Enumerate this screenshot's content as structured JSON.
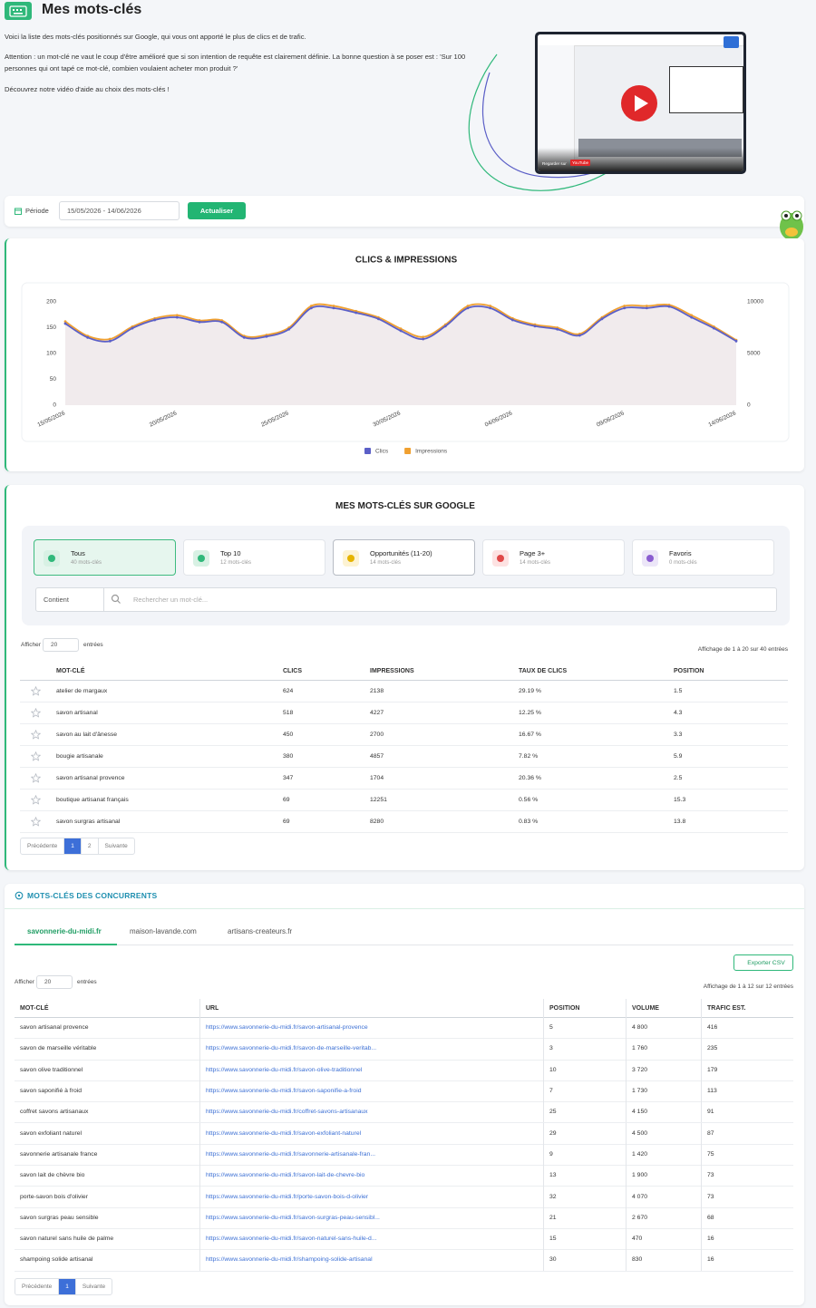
{
  "header": {
    "title": "Mes mots-clés"
  },
  "intro": {
    "p1": "Voici la liste des mots-clés positionnés sur Google, qui vous ont apporté le plus de clics et de trafic.",
    "p2": "Attention : un mot-clé ne vaut le coup d'être amélioré que si son intention de requête est clairement définie. La bonne question à se poser est : 'Sur 100 personnes qui ont tapé ce mot-clé, combien voulaient acheter mon produit ?'",
    "p3": "Découvrez notre vidéo d'aide au choix des mots-clés !"
  },
  "video": {
    "watch": "Regarder sur",
    "platform": "YouTube"
  },
  "period": {
    "label": "Période",
    "range": "15/05/2026 - 14/06/2026",
    "button": "Actualiser"
  },
  "chart_data": {
    "type": "line",
    "title": "CLICS & IMPRESSIONS",
    "categories": [
      "15/05/2026",
      null,
      null,
      null,
      null,
      "20/05/2026",
      null,
      null,
      null,
      null,
      "25/05/2026",
      null,
      null,
      null,
      null,
      "30/05/2026",
      null,
      null,
      null,
      null,
      "04/06/2026",
      null,
      null,
      null,
      null,
      "09/06/2026",
      null,
      null,
      null,
      null,
      "14/06/2026"
    ],
    "series": [
      {
        "name": "Clics",
        "color": "#5b5fc7",
        "values": [
          158,
          131,
          124,
          149,
          165,
          170,
          161,
          161,
          131,
          133,
          147,
          188,
          188,
          179,
          167,
          144,
          128,
          153,
          188,
          188,
          165,
          153,
          147,
          135,
          167,
          188,
          188,
          191,
          170,
          149,
          124
        ]
      },
      {
        "name": "Impressions",
        "color": "#f0a030",
        "axis": "y2",
        "values": [
          8100,
          6700,
          6400,
          7600,
          8400,
          8700,
          8200,
          8200,
          6700,
          6800,
          7500,
          9600,
          9600,
          9100,
          8500,
          7400,
          6600,
          7800,
          9600,
          9600,
          8400,
          7800,
          7500,
          6900,
          8500,
          9600,
          9600,
          9700,
          8700,
          7600,
          6300
        ]
      }
    ],
    "ylim": [
      0,
      200
    ],
    "yticks": [
      0,
      50,
      100,
      150,
      200
    ],
    "y2lim": [
      0,
      10000
    ],
    "y2ticks": [
      0,
      5000,
      10000
    ],
    "grid": false,
    "legend": "bottom"
  },
  "keywords": {
    "title": "MES MOTS-CLÉS SUR GOOGLE",
    "tabs": [
      {
        "label": "Tous",
        "count": "40 mots-clés"
      },
      {
        "label": "Top 10",
        "count": "12 mots-clés"
      },
      {
        "label": "Opportunités (11-20)",
        "count": "14 mots-clés"
      },
      {
        "label": "Page 3+",
        "count": "14 mots-clés"
      },
      {
        "label": "Favoris",
        "count": "0 mots-clés"
      }
    ],
    "filter": {
      "operator": "Contient",
      "placeholder": "Rechercher un mot-clé..."
    },
    "show": {
      "before": "Afficher",
      "value": "20",
      "after": "entrées"
    },
    "info": "Affichage de 1 à 20 sur 40 entrées",
    "table": {
      "columns": [
        "MOT-CLÉ",
        "CLICS",
        "IMPRESSIONS",
        "TAUX DE CLICS",
        "POSITION"
      ],
      "rows": [
        [
          "atelier de margaux",
          "624",
          "2138",
          "29.19 %",
          "1.5"
        ],
        [
          "savon artisanal",
          "518",
          "4227",
          "12.25 %",
          "4.3"
        ],
        [
          "savon au lait d'ânesse",
          "450",
          "2700",
          "16.67 %",
          "3.3"
        ],
        [
          "bougie artisanale",
          "380",
          "4857",
          "7.82 %",
          "5.9"
        ],
        [
          "savon artisanal provence",
          "347",
          "1704",
          "20.36 %",
          "2.5"
        ],
        [
          "boutique artisanat français",
          "69",
          "12251",
          "0.56 %",
          "15.3"
        ],
        [
          "savon surgras artisanal",
          "69",
          "8280",
          "0.83 %",
          "13.8"
        ]
      ]
    },
    "pagination": {
      "prev": "Précédente",
      "pages": [
        "1",
        "2"
      ],
      "next": "Suivante"
    }
  },
  "competitors": {
    "title": "MOTS-CLÉS DES CONCURRENTS",
    "tabs": [
      "savonnerie-du-midi.fr",
      "maison-lavande.com",
      "artisans-createurs.fr"
    ],
    "export": "Exporter CSV",
    "show": {
      "before": "Afficher",
      "value": "20",
      "after": "entrées"
    },
    "info": "Affichage de 1 à 12 sur 12 entrées",
    "table": {
      "columns": [
        "MOT-CLÉ",
        "URL",
        "POSITION",
        "VOLUME",
        "TRAFIC EST."
      ],
      "rows": [
        [
          "savon artisanal provence",
          "https://www.savonnerie-du-midi.fr/savon-artisanal-provence",
          "5",
          "4 800",
          "416"
        ],
        [
          "savon de marseille véritable",
          "https://www.savonnerie-du-midi.fr/savon-de-marseille-veritab...",
          "3",
          "1 760",
          "235"
        ],
        [
          "savon olive traditionnel",
          "https://www.savonnerie-du-midi.fr/savon-olive-traditionnel",
          "10",
          "3 720",
          "179"
        ],
        [
          "savon saponifié à froid",
          "https://www.savonnerie-du-midi.fr/savon-saponifie-a-froid",
          "7",
          "1 730",
          "113"
        ],
        [
          "coffret savons artisanaux",
          "https://www.savonnerie-du-midi.fr/coffret-savons-artisanaux",
          "25",
          "4 150",
          "91"
        ],
        [
          "savon exfoliant naturel",
          "https://www.savonnerie-du-midi.fr/savon-exfoliant-naturel",
          "29",
          "4 500",
          "87"
        ],
        [
          "savonnerie artisanale france",
          "https://www.savonnerie-du-midi.fr/savonnerie-artisanale-fran...",
          "9",
          "1 420",
          "75"
        ],
        [
          "savon lait de chèvre bio",
          "https://www.savonnerie-du-midi.fr/savon-lait-de-chevre-bio",
          "13",
          "1 900",
          "73"
        ],
        [
          "porte-savon bois d'olivier",
          "https://www.savonnerie-du-midi.fr/porte-savon-bois-d-olivier",
          "32",
          "4 070",
          "73"
        ],
        [
          "savon surgras peau sensible",
          "https://www.savonnerie-du-midi.fr/savon-surgras-peau-sensibl...",
          "21",
          "2 670",
          "68"
        ],
        [
          "savon naturel sans huile de palme",
          "https://www.savonnerie-du-midi.fr/savon-naturel-sans-huile-d...",
          "15",
          "470",
          "16"
        ],
        [
          "shampoing solide artisanal",
          "https://www.savonnerie-du-midi.fr/shampoing-solide-artisanal",
          "30",
          "830",
          "16"
        ]
      ]
    },
    "pagination": {
      "prev": "Précédente",
      "pages": [
        "1"
      ],
      "next": "Suivante"
    }
  }
}
